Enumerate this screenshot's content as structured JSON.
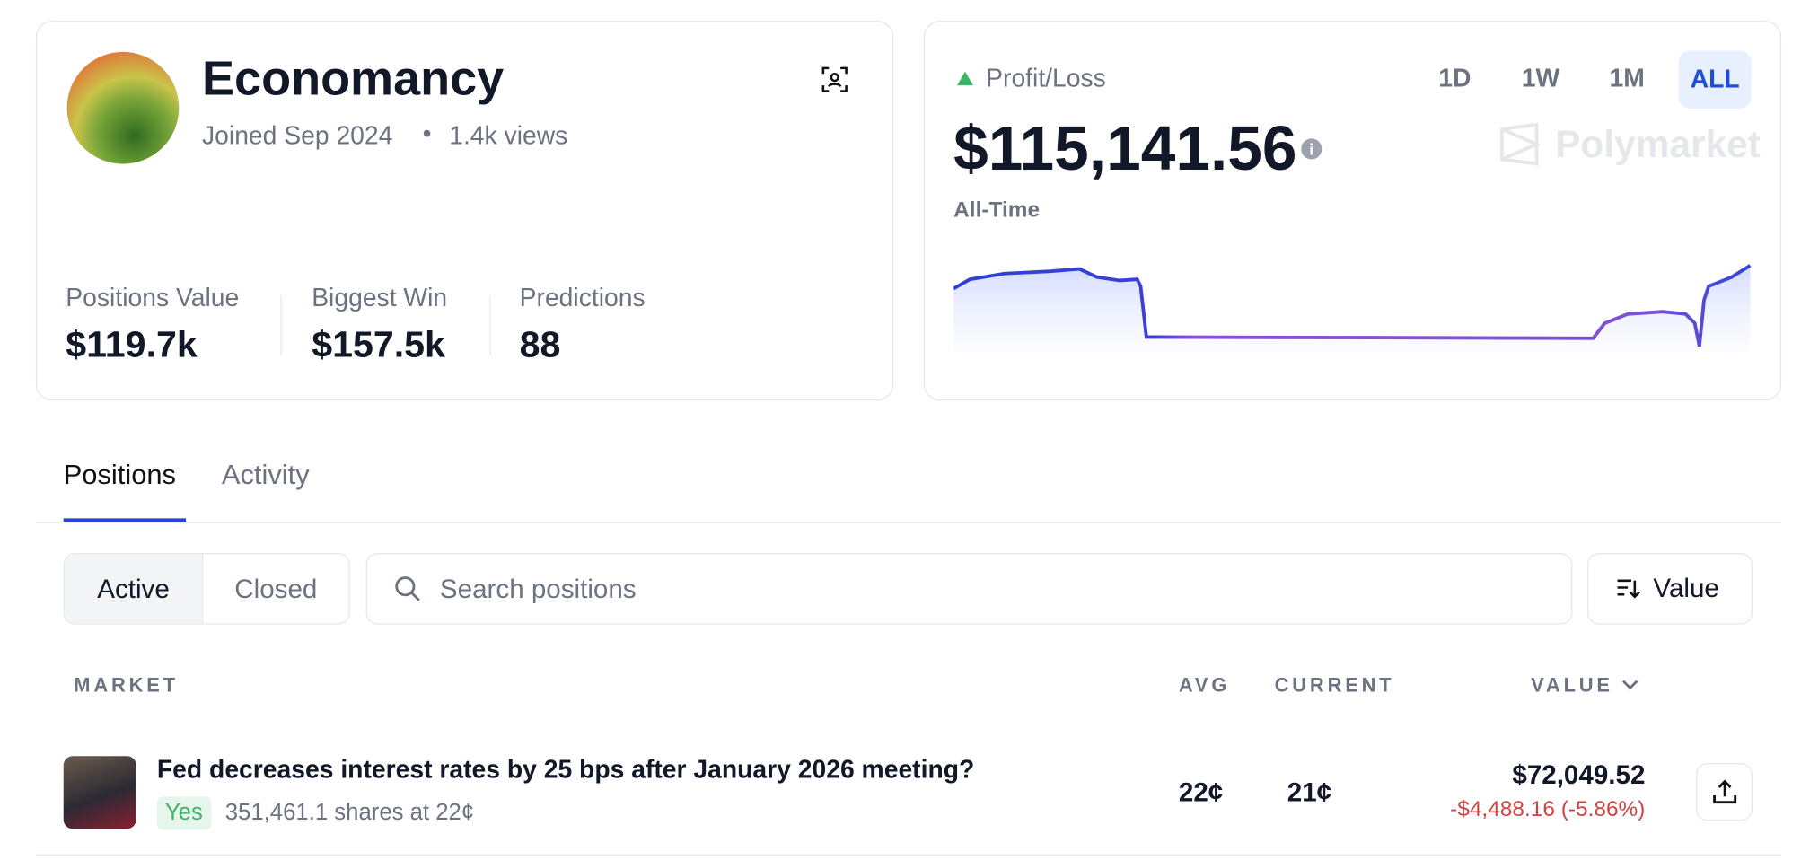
{
  "profile": {
    "name": "Economancy",
    "joined": "Joined Sep 2024",
    "views": "1.4k views"
  },
  "stats": [
    {
      "label": "Positions Value",
      "value": "$119.7k"
    },
    {
      "label": "Biggest Win",
      "value": "$157.5k"
    },
    {
      "label": "Predictions",
      "value": "88"
    }
  ],
  "pnl": {
    "label": "Profit/Loss",
    "value": "$115,141.56",
    "period": "All-Time",
    "ranges": [
      "1D",
      "1W",
      "1M",
      "ALL"
    ],
    "brand": "Polymarket"
  },
  "tabs": [
    "Positions",
    "Activity"
  ],
  "filters": [
    "Active",
    "Closed"
  ],
  "search": "Search positions",
  "sort": "Value",
  "table": {
    "headers": [
      "MARKET",
      "AVG",
      "CURRENT",
      "VALUE"
    ],
    "rows": [
      {
        "title": "Fed decreases interest rates by 25 bps after January 2026 meeting?",
        "outcome": "Yes",
        "shares": "351,461.1 shares at 22¢",
        "avg": "22¢",
        "current": "21¢",
        "value": "$72,049.52",
        "change": "-$4,488.16 (-5.86%)"
      }
    ]
  }
}
